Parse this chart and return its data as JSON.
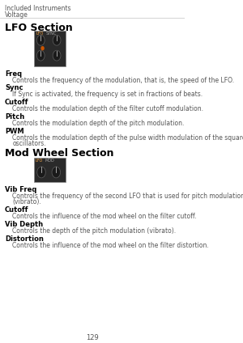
{
  "bg_color": "#ffffff",
  "header_text1": "Included Instruments",
  "header_text2": "Voltage",
  "section1_title": "LFO Section",
  "section2_title": "Mod Wheel Section",
  "page_number": "129",
  "lfo_items": [
    {
      "term": "Freq",
      "desc": "Controls the frequency of the modulation, that is, the speed of the LFO."
    },
    {
      "term": "Sync",
      "desc": "If Sync is activated, the frequency is set in fractions of beats."
    },
    {
      "term": "Cutoff",
      "desc": "Controls the modulation depth of the filter cutoff modulation."
    },
    {
      "term": "Pitch",
      "desc": "Controls the modulation depth of the pitch modulation."
    },
    {
      "term": "PWM",
      "desc": "Controls the modulation depth of the pulse width modulation of the square\noscillators."
    }
  ],
  "mod_items": [
    {
      "term": "Vib Freq",
      "desc": "Controls the frequency of the second LFO that is used for pitch modulation\n(vibrato)."
    },
    {
      "term": "Cutoff",
      "desc": "Controls the influence of the mod wheel on the filter cutoff."
    },
    {
      "term": "Vib Depth",
      "desc": "Controls the depth of the pitch modulation (vibrato)."
    },
    {
      "term": "Distortion",
      "desc": "Controls the influence of the mod wheel on the filter distortion."
    }
  ],
  "header_color": "#555555",
  "header_line_color": "#cccccc",
  "section_title_color": "#000000",
  "term_color": "#000000",
  "desc_color": "#555555",
  "page_num_color": "#555555",
  "instrument_box_color": "#2a2a2a",
  "instrument_box_accent": "#cc5500"
}
